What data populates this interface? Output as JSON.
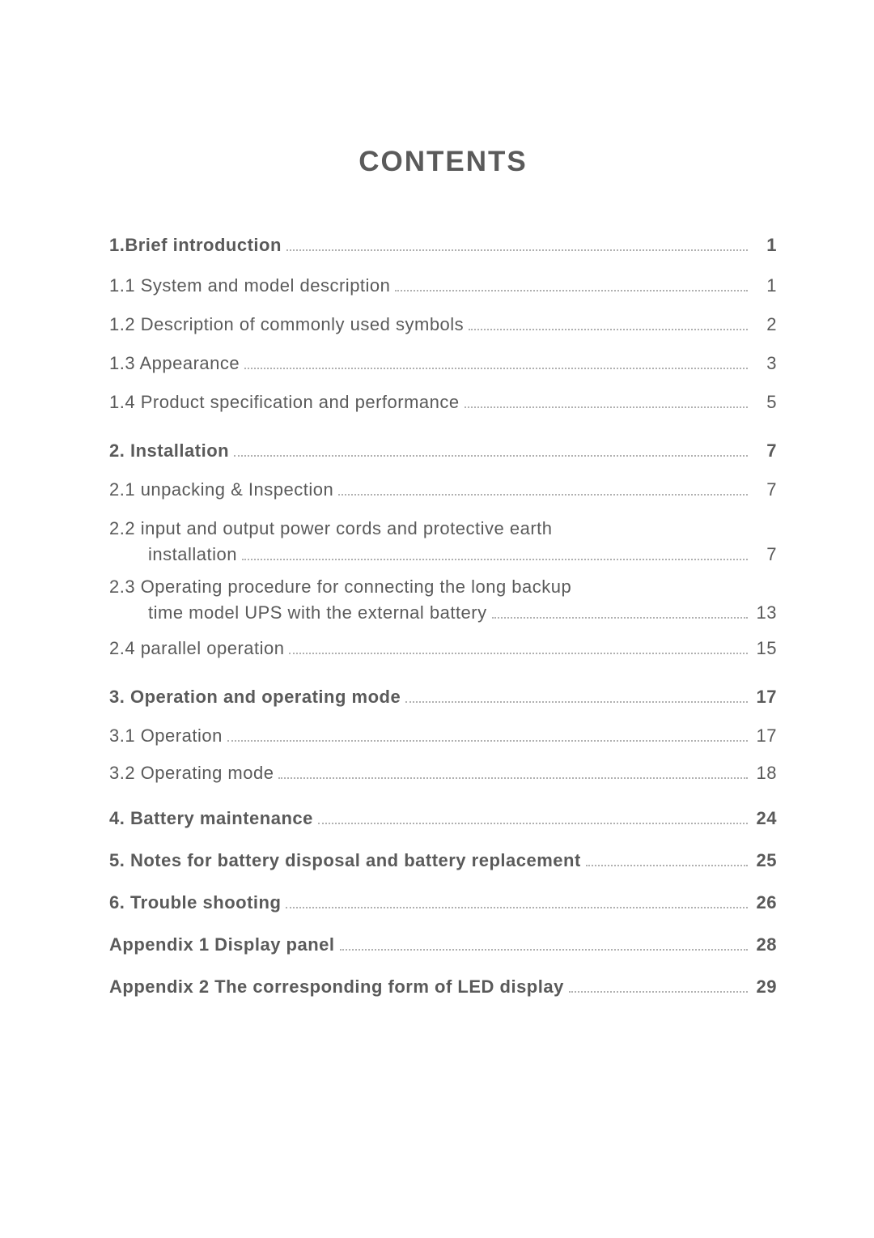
{
  "title": "CONTENTS",
  "entries": [
    {
      "label": "1.Brief introduction",
      "page": "1",
      "bold": true,
      "gapBefore": 0,
      "gapAfter": 24
    },
    {
      "label": "1.1 System and model description",
      "page": "1",
      "bold": false,
      "gapBefore": 0,
      "gapAfter": 22
    },
    {
      "label": "1.2 Description of commonly used symbols",
      "page": "2",
      "bold": false,
      "gapBefore": 0,
      "gapAfter": 22
    },
    {
      "label": "1.3 Appearance",
      "page": "3",
      "bold": false,
      "gapBefore": 0,
      "gapAfter": 22
    },
    {
      "label": "1.4 Product specification and performance",
      "page": "5",
      "bold": false,
      "gapBefore": 0,
      "gapAfter": 34
    },
    {
      "label": "2. Installation",
      "page": "7",
      "bold": true,
      "gapBefore": 0,
      "gapAfter": 22
    },
    {
      "label": "2.1 unpacking & Inspection",
      "page": "7",
      "bold": false,
      "gapBefore": 0,
      "gapAfter": 22
    },
    {
      "type": "multi",
      "line1": "2.2 input and output power cords and protective earth",
      "line2": "installation",
      "page": "7",
      "bold": false,
      "gapBefore": 0,
      "gapAfter": 14
    },
    {
      "type": "multi",
      "line1": "2.3 Operating procedure for connecting the long backup",
      "line2": "time model UPS with the external battery",
      "page": "13",
      "bold": false,
      "gapBefore": 0,
      "gapAfter": 18
    },
    {
      "label": "2.4 parallel operation",
      "page": "15",
      "bold": false,
      "gapBefore": 0,
      "gapAfter": 34
    },
    {
      "label": "3. Operation and operating mode",
      "page": "17",
      "bold": true,
      "gapBefore": 0,
      "gapAfter": 22
    },
    {
      "label": "3.1 Operation",
      "page": "17",
      "bold": false,
      "gapBefore": 0,
      "gapAfter": 20
    },
    {
      "label": "3.2 Operating mode",
      "page": "18",
      "bold": false,
      "gapBefore": 0,
      "gapAfter": 30
    },
    {
      "label": "4. Battery maintenance",
      "page": "24",
      "bold": true,
      "gapBefore": 0,
      "gapAfter": 26
    },
    {
      "label": "5. Notes for battery disposal and battery replacement",
      "page": "25",
      "bold": true,
      "gapBefore": 0,
      "gapAfter": 26
    },
    {
      "label": "6. Trouble shooting",
      "page": "26",
      "bold": true,
      "gapBefore": 0,
      "gapAfter": 26
    },
    {
      "label": "Appendix 1 Display panel",
      "page": "28",
      "bold": true,
      "gapBefore": 0,
      "gapAfter": 26
    },
    {
      "label": "Appendix 2 The corresponding form of LED display",
      "page": "29",
      "bold": true,
      "gapBefore": 0,
      "gapAfter": 0
    }
  ],
  "style": {
    "pageBg": "#ffffff",
    "textColor": "#5a5a5a",
    "dotColor": "#b0b0b0",
    "titleFontSize": 35,
    "entryFontSize": 22,
    "pageWidth": 1080,
    "pageHeight": 1529,
    "padTop": 180,
    "padLeft": 135,
    "padRight": 120,
    "indentPx": 48
  }
}
